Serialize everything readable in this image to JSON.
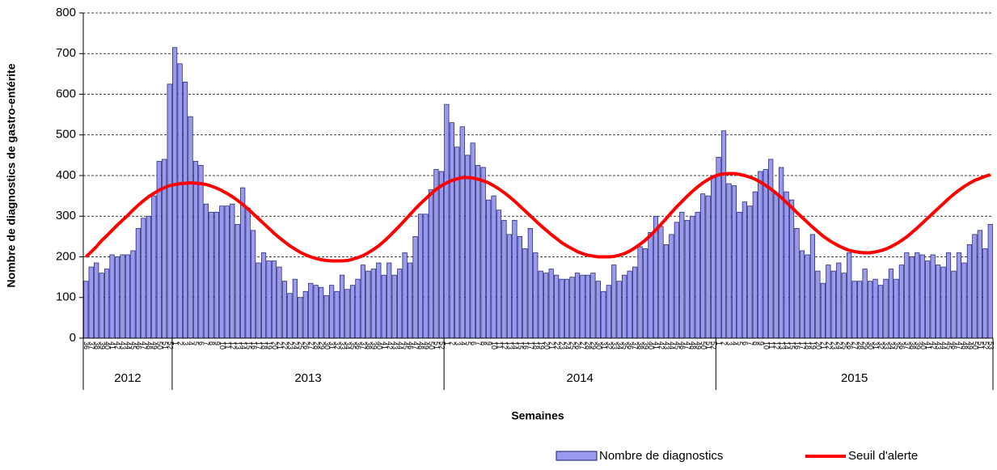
{
  "chart_data": {
    "type": "bar",
    "y_label": "Nombre de diagnostics de gastro-entérite",
    "x_label": "Semaines",
    "groups": [
      {
        "label": "2012",
        "categories": [
          "36",
          "37",
          "38",
          "39",
          "40",
          "41",
          "42",
          "43",
          "44",
          "45",
          "46",
          "47",
          "48",
          "49",
          "50",
          "51",
          "52"
        ]
      },
      {
        "label": "2013",
        "categories": [
          "1",
          "2",
          "3",
          "4",
          "5",
          "6",
          "7",
          "8",
          "9",
          "10",
          "11",
          "12",
          "13",
          "14",
          "15",
          "16",
          "17",
          "18",
          "19",
          "20",
          "21",
          "22",
          "23",
          "24",
          "25",
          "26",
          "27",
          "28",
          "29",
          "30",
          "31",
          "32",
          "33",
          "34",
          "35",
          "36",
          "37",
          "38",
          "39",
          "40",
          "41",
          "42",
          "43",
          "44",
          "45",
          "46",
          "47",
          "48",
          "49",
          "50",
          "51",
          "52"
        ]
      },
      {
        "label": "2014",
        "categories": [
          "1",
          "2",
          "3",
          "4",
          "5",
          "6",
          "7",
          "8",
          "9",
          "10",
          "11",
          "12",
          "13",
          "14",
          "15",
          "16",
          "17",
          "18",
          "19",
          "20",
          "21",
          "22",
          "23",
          "24",
          "25",
          "26",
          "27",
          "28",
          "29",
          "30",
          "31",
          "32",
          "33",
          "34",
          "35",
          "36",
          "37",
          "38",
          "39",
          "40",
          "41",
          "42",
          "43",
          "44",
          "45",
          "46",
          "47",
          "48",
          "49",
          "50",
          "51",
          "52"
        ]
      },
      {
        "label": "2015",
        "categories": [
          "1",
          "2",
          "3",
          "4",
          "5",
          "6",
          "7",
          "8",
          "9",
          "10",
          "11",
          "12",
          "13",
          "14",
          "15",
          "16",
          "17",
          "18",
          "19",
          "20",
          "21",
          "22",
          "23",
          "24",
          "25",
          "26",
          "27",
          "28",
          "29",
          "30",
          "31",
          "32",
          "33",
          "34",
          "35",
          "36",
          "37",
          "38",
          "39",
          "40",
          "41",
          "42",
          "43",
          "44",
          "45",
          "46",
          "47",
          "48",
          "49",
          "50",
          "51",
          "52",
          "53"
        ]
      }
    ],
    "series": [
      {
        "name": "Nombre de diagnostics",
        "type": "bar",
        "color": "#9999ee",
        "values": [
          140,
          175,
          185,
          160,
          170,
          205,
          200,
          205,
          205,
          215,
          270,
          295,
          300,
          350,
          435,
          440,
          625,
          715,
          675,
          630,
          545,
          435,
          425,
          330,
          310,
          310,
          325,
          325,
          330,
          280,
          370,
          320,
          265,
          185,
          210,
          190,
          190,
          175,
          140,
          110,
          145,
          100,
          115,
          135,
          130,
          125,
          105,
          130,
          115,
          155,
          120,
          130,
          145,
          180,
          165,
          170,
          185,
          155,
          185,
          155,
          170,
          210,
          185,
          250,
          305,
          305,
          365,
          415,
          410,
          575,
          530,
          470,
          520,
          450,
          480,
          425,
          420,
          340,
          350,
          315,
          290,
          255,
          290,
          250,
          220,
          270,
          210,
          165,
          160,
          170,
          155,
          145,
          145,
          150,
          160,
          155,
          155,
          160,
          140,
          115,
          130,
          180,
          140,
          155,
          165,
          175,
          225,
          220,
          260,
          300,
          275,
          230,
          255,
          285,
          310,
          290,
          300,
          310,
          355,
          350,
          400,
          445,
          510,
          380,
          375,
          310,
          335,
          325,
          360,
          410,
          415,
          440,
          355,
          420,
          360,
          340,
          270,
          215,
          205,
          255,
          165,
          135,
          180,
          165,
          185,
          160,
          210,
          140,
          140,
          170,
          140,
          145,
          130,
          145,
          170,
          145,
          180,
          210,
          200,
          210,
          205,
          190,
          205,
          180,
          175,
          210,
          165,
          210,
          185,
          230,
          255,
          265,
          220,
          280
        ]
      },
      {
        "name": "Seuil d'alerte",
        "type": "line",
        "color": "#ff0000",
        "values": [
          200,
          212,
          225,
          240,
          252,
          265,
          278,
          290,
          302,
          315,
          327,
          338,
          348,
          356,
          364,
          370,
          375,
          378,
          380,
          381,
          382,
          381,
          380,
          378,
          374,
          369,
          363,
          356,
          348,
          339,
          329,
          318,
          306,
          294,
          282,
          270,
          258,
          247,
          237,
          227,
          219,
          211,
          205,
          200,
          196,
          193,
          191,
          190,
          190,
          190,
          191,
          194,
          198,
          203,
          210,
          218,
          227,
          238,
          250,
          263,
          276,
          290,
          304,
          318,
          331,
          343,
          355,
          366,
          375,
          382,
          388,
          392,
          395,
          395,
          394,
          391,
          387,
          382,
          375,
          367,
          358,
          348,
          337,
          325,
          313,
          301,
          289,
          277,
          266,
          255,
          245,
          235,
          227,
          220,
          213,
          208,
          204,
          202,
          200,
          200,
          200,
          201,
          204,
          208,
          214,
          222,
          231,
          241,
          253,
          266,
          280,
          294,
          309,
          323,
          336,
          349,
          361,
          372,
          382,
          390,
          397,
          402,
          404,
          405,
          405,
          403,
          400,
          396,
          391,
          384,
          376,
          367,
          357,
          346,
          334,
          322,
          309,
          297,
          285,
          273,
          262,
          251,
          242,
          234,
          227,
          221,
          216,
          213,
          211,
          210,
          210,
          212,
          215,
          219,
          225,
          232,
          240,
          249,
          260,
          271,
          283,
          295,
          307,
          319,
          331,
          343,
          354,
          364,
          373,
          381,
          388,
          393,
          398,
          402
        ]
      }
    ],
    "ylim": [
      0,
      800
    ],
    "yticks": [
      0,
      100,
      200,
      300,
      400,
      500,
      600,
      700,
      800
    ],
    "grid": true
  }
}
